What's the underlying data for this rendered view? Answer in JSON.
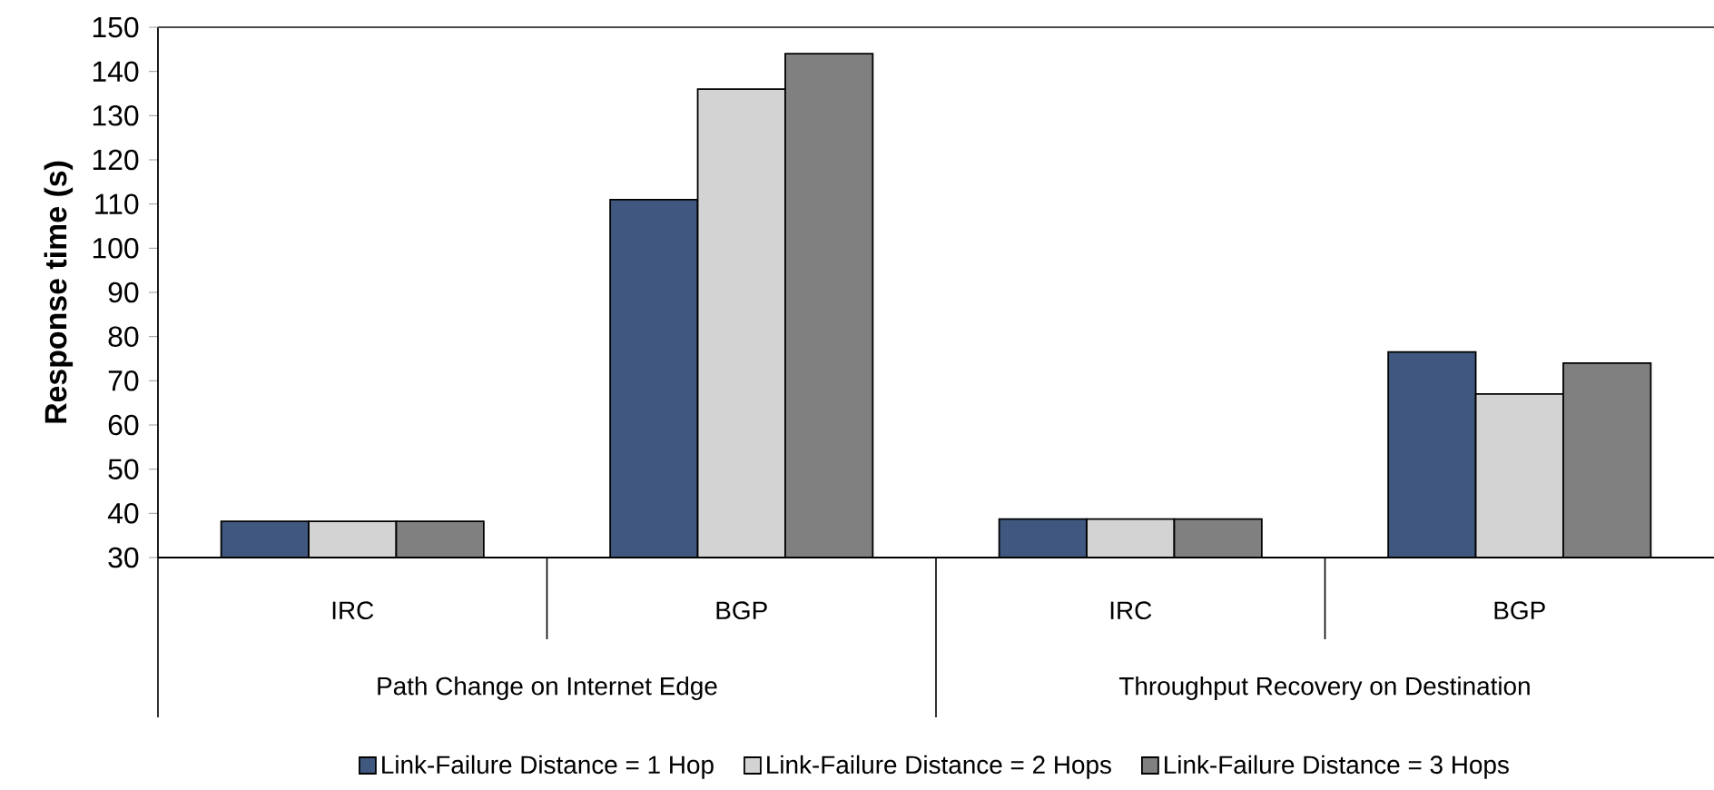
{
  "chart_data": {
    "type": "bar",
    "ylabel": "Response time (s)",
    "categories": [
      "IRC",
      "BGP",
      "IRC",
      "BGP"
    ],
    "annotations": [
      "Path Change on Internet Edge",
      "Throughput Recovery on Destination"
    ],
    "series": [
      {
        "name": "Link-Failure Distance = 1 Hop",
        "color": "#40587f",
        "values": [
          38.2,
          111,
          38.7,
          76.5
        ]
      },
      {
        "name": "Link-Failure Distance = 2 Hops",
        "color": "#d3d3d3",
        "values": [
          38.2,
          136,
          38.7,
          67
        ]
      },
      {
        "name": "Link-Failure Distance = 3 Hops",
        "color": "#808080",
        "values": [
          38.2,
          144,
          38.7,
          74
        ]
      }
    ],
    "ylim": [
      30,
      150
    ],
    "yticks": [
      30,
      40,
      50,
      60,
      70,
      80,
      90,
      100,
      110,
      120,
      130,
      140,
      150
    ],
    "grid": false,
    "legend": "bottom"
  }
}
